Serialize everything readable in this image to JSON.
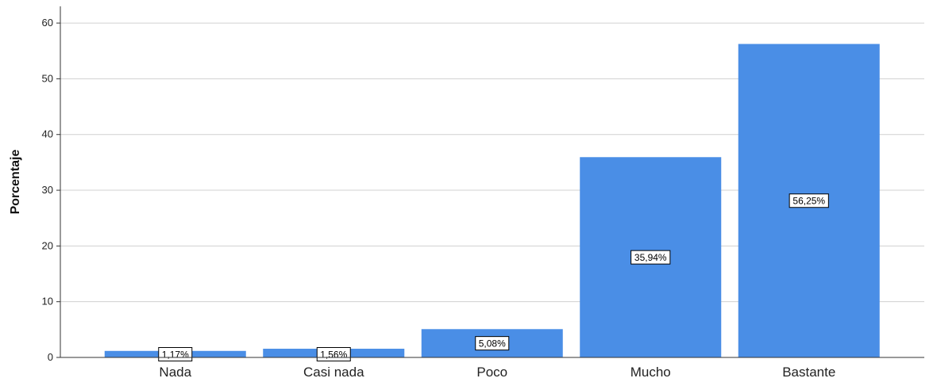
{
  "chart_data": {
    "type": "bar",
    "title": "",
    "xlabel": "",
    "ylabel": "Porcentaje",
    "categories": [
      "Nada",
      "Casi nada",
      "Poco",
      "Mucho",
      "Bastante"
    ],
    "values": [
      1.17,
      1.56,
      5.08,
      35.94,
      56.25
    ],
    "data_labels": [
      "1,17%",
      "1,56%",
      "5,08%",
      "35,94%",
      "56,25%"
    ],
    "yticks": [
      0,
      10,
      20,
      30,
      40,
      50,
      60
    ],
    "ylim": [
      0,
      63
    ],
    "grid": true,
    "legend": "none",
    "bar_color": "#4a8ee6",
    "grid_color": "#d0d0d0"
  }
}
